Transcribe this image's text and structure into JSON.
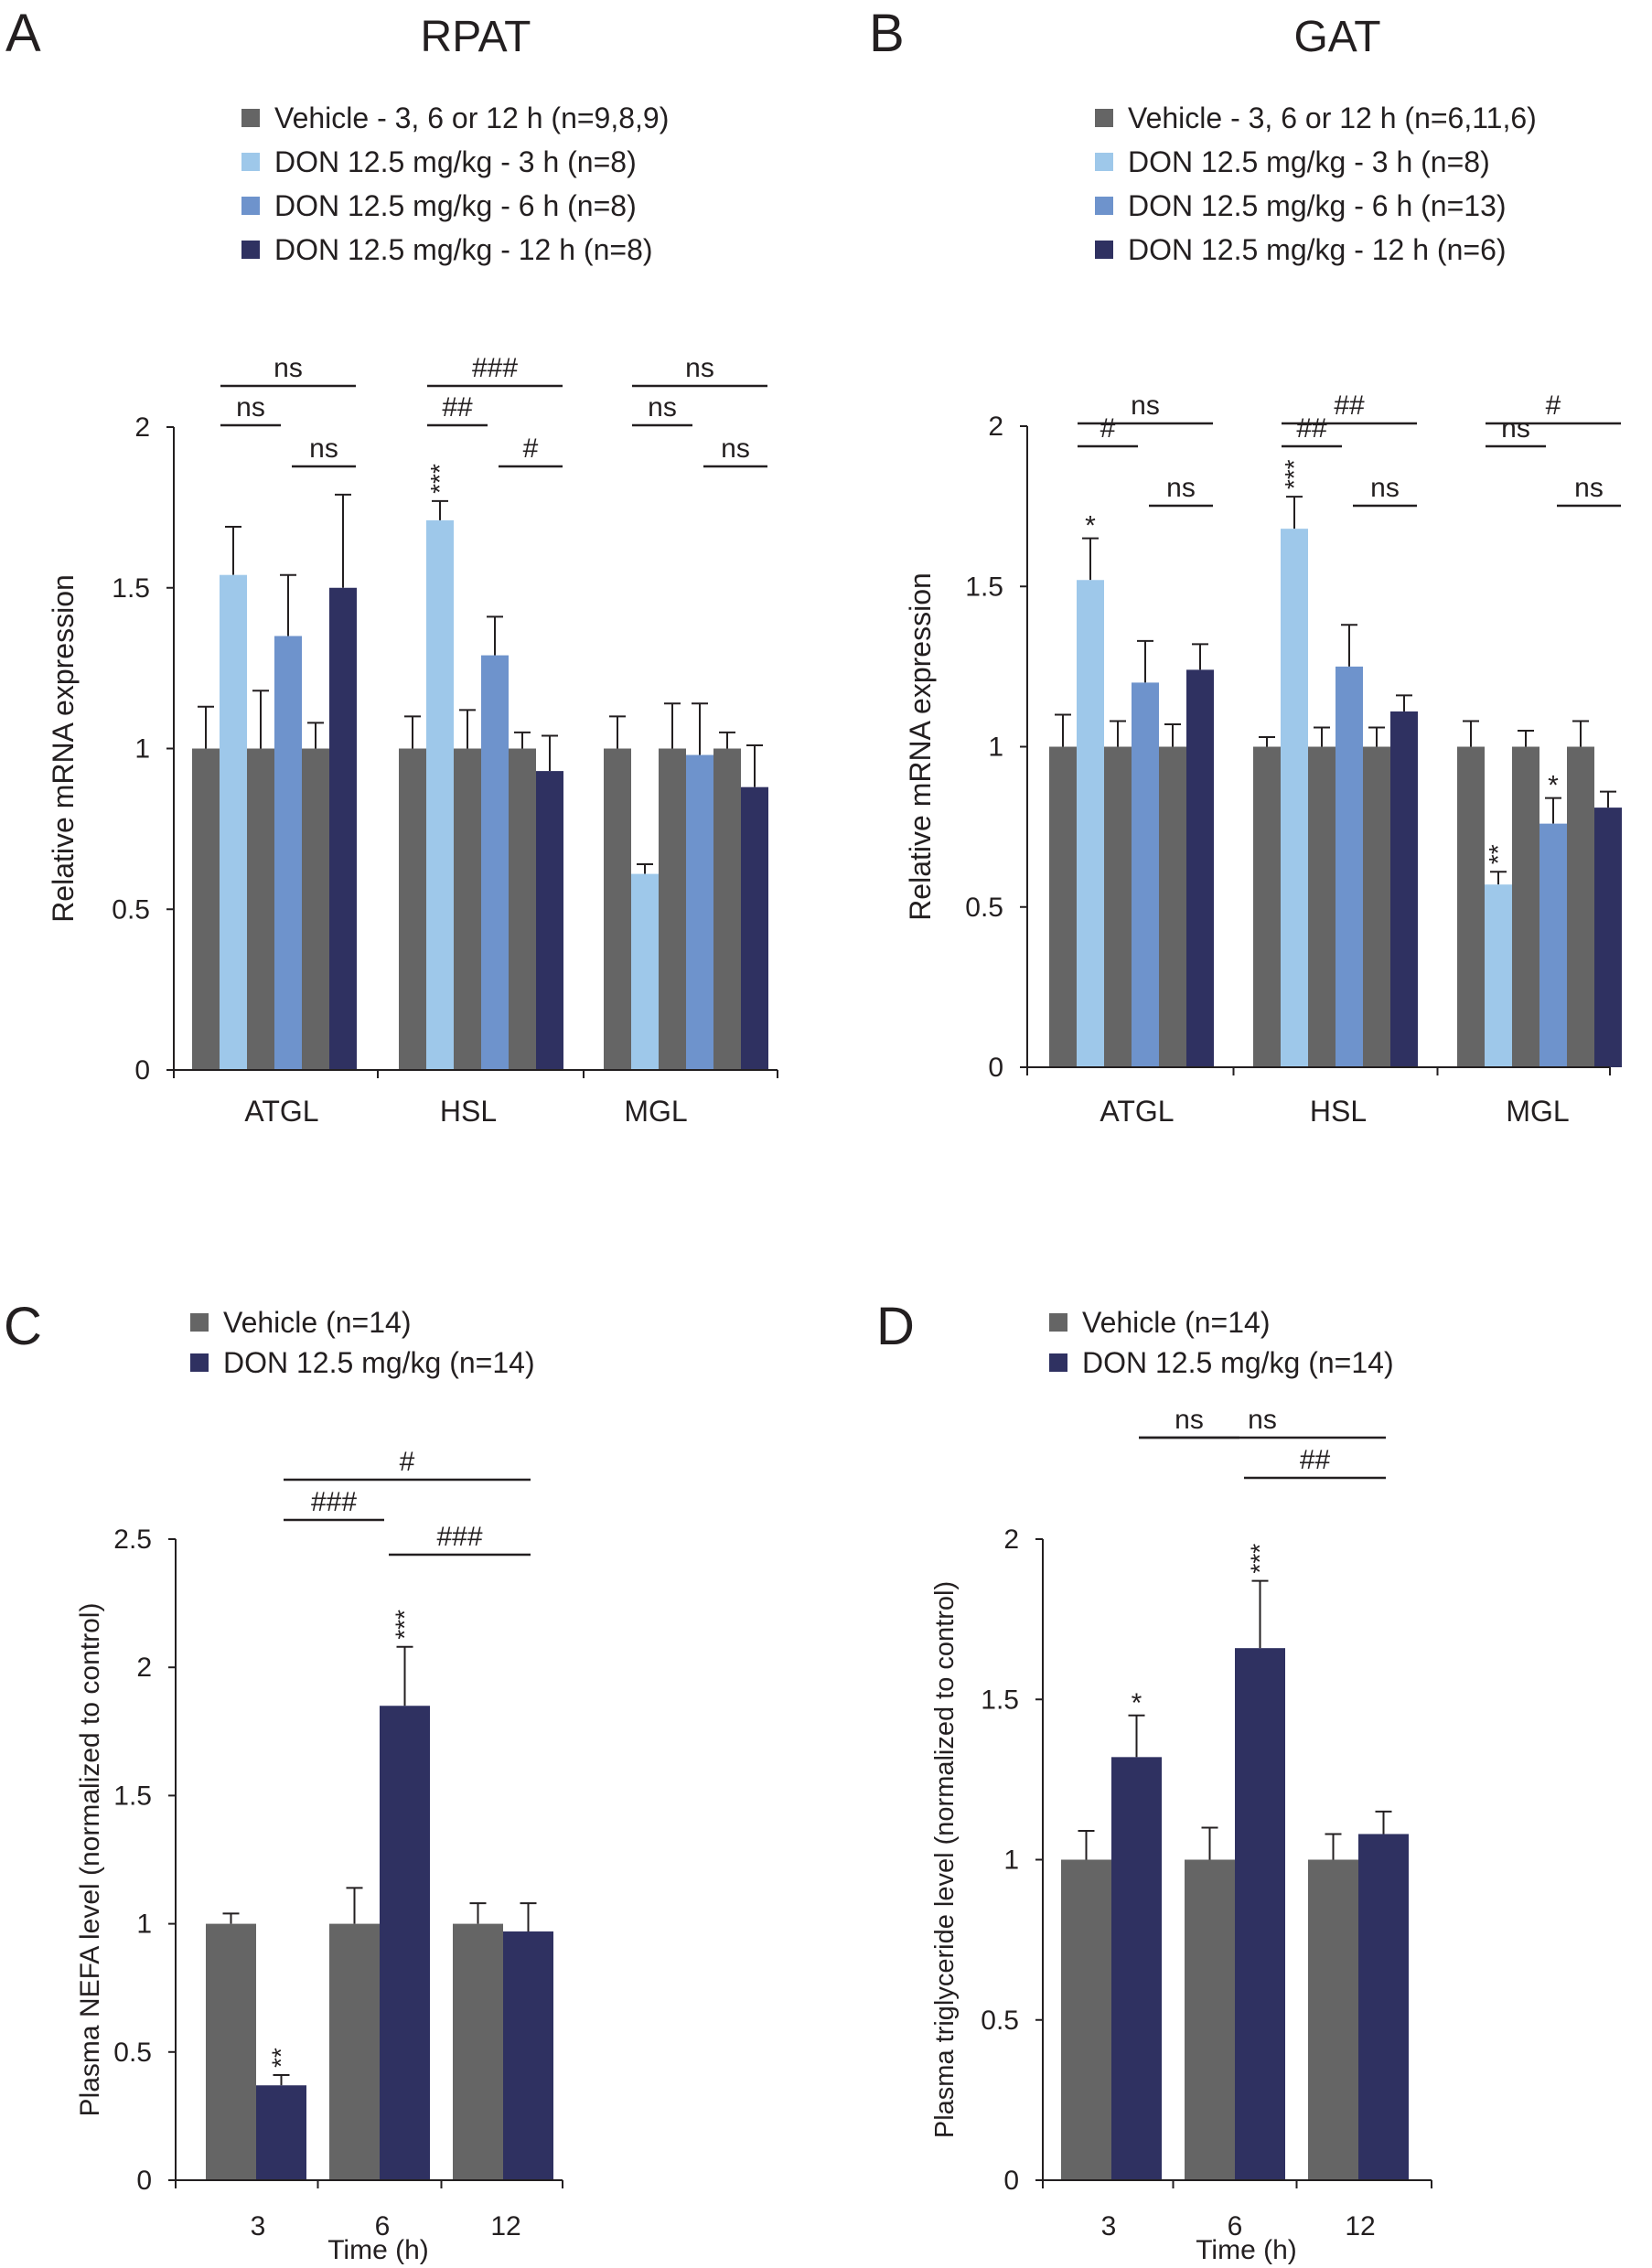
{
  "colors": {
    "vehicle": "#656565",
    "don_3h": "#9ec8ea",
    "don_6h": "#6e93cc",
    "don_12h": "#2f3161",
    "axis": "#231f20"
  },
  "chart_data": [
    {
      "type": "bar",
      "panel_letter": "A",
      "title": "RPAT",
      "ylabel": "Relative mRNA expression",
      "xlabel": "",
      "ylim": [
        0,
        2
      ],
      "yticks": [
        0,
        0.5,
        1,
        1.5,
        2
      ],
      "ytick_labels": [
        "0",
        "0.5",
        "1",
        "1.5",
        "2"
      ],
      "categories": [
        "ATGL",
        "HSL",
        "MGL"
      ],
      "legend": [
        {
          "label": "Vehicle - 3, 6 or 12 h (n=9,8,9)",
          "color": "vehicle"
        },
        {
          "label": "DON 12.5 mg/kg - 3 h (n=8)",
          "color": "don_3h"
        },
        {
          "label": "DON 12.5 mg/kg - 6 h (n=8)",
          "color": "don_6h"
        },
        {
          "label": "DON 12.5 mg/kg - 12 h (n=8)",
          "color": "don_12h"
        }
      ],
      "groups": [
        {
          "bars": [
            {
              "value": 1.0,
              "err": 0.13,
              "color": "vehicle"
            },
            {
              "value": 1.54,
              "err": 0.15,
              "color": "don_3h"
            },
            {
              "value": 1.0,
              "err": 0.18,
              "color": "vehicle"
            },
            {
              "value": 1.35,
              "err": 0.19,
              "color": "don_6h"
            },
            {
              "value": 1.0,
              "err": 0.08,
              "color": "vehicle"
            },
            {
              "value": 1.5,
              "err": 0.29,
              "color": "don_12h"
            }
          ]
        },
        {
          "bars": [
            {
              "value": 1.0,
              "err": 0.1,
              "color": "vehicle"
            },
            {
              "value": 1.71,
              "err": 0.06,
              "color": "don_3h",
              "star": "***"
            },
            {
              "value": 1.0,
              "err": 0.12,
              "color": "vehicle"
            },
            {
              "value": 1.29,
              "err": 0.12,
              "color": "don_6h"
            },
            {
              "value": 1.0,
              "err": 0.05,
              "color": "vehicle"
            },
            {
              "value": 0.93,
              "err": 0.11,
              "color": "don_12h"
            }
          ]
        },
        {
          "bars": [
            {
              "value": 1.0,
              "err": 0.1,
              "color": "vehicle"
            },
            {
              "value": 0.61,
              "err": 0.03,
              "color": "don_3h"
            },
            {
              "value": 1.0,
              "err": 0.14,
              "color": "vehicle"
            },
            {
              "value": 0.98,
              "err": 0.16,
              "color": "don_6h"
            },
            {
              "value": 1.0,
              "err": 0.05,
              "color": "vehicle"
            },
            {
              "value": 0.88,
              "err": 0.13,
              "color": "don_12h"
            }
          ]
        }
      ],
      "comparisons": [
        {
          "group": 0,
          "from": 1,
          "to": 5,
          "level": 3,
          "label": "ns"
        },
        {
          "group": 0,
          "from": 1,
          "to": 3,
          "level": 2,
          "label": "ns"
        },
        {
          "group": 0,
          "from": 3,
          "to": 5,
          "level": 1,
          "label": "ns"
        },
        {
          "group": 1,
          "from": 1,
          "to": 5,
          "level": 3,
          "label": "###"
        },
        {
          "group": 1,
          "from": 1,
          "to": 3,
          "level": 2,
          "label": "##"
        },
        {
          "group": 1,
          "from": 3,
          "to": 5,
          "level": 1,
          "label": "#"
        },
        {
          "group": 2,
          "from": 1,
          "to": 5,
          "level": 3,
          "label": "ns"
        },
        {
          "group": 2,
          "from": 1,
          "to": 3,
          "level": 2,
          "label": "ns"
        },
        {
          "group": 2,
          "from": 3,
          "to": 5,
          "level": 1,
          "label": "ns"
        }
      ]
    },
    {
      "type": "bar",
      "panel_letter": "B",
      "title": "GAT",
      "ylabel": "Relative mRNA expression",
      "xlabel": "",
      "ylim": [
        0,
        2
      ],
      "yticks": [
        0,
        0.5,
        1,
        1.5,
        2
      ],
      "ytick_labels": [
        "0",
        "0.5",
        "1",
        "1.5",
        "2"
      ],
      "categories": [
        "ATGL",
        "HSL",
        "MGL"
      ],
      "legend": [
        {
          "label": "Vehicle - 3, 6 or 12 h (n=6,11,6)",
          "color": "vehicle"
        },
        {
          "label": "DON 12.5 mg/kg - 3 h (n=8)",
          "color": "don_3h"
        },
        {
          "label": "DON 12.5 mg/kg - 6 h (n=13)",
          "color": "don_6h"
        },
        {
          "label": "DON 12.5 mg/kg - 12 h (n=6)",
          "color": "don_12h"
        }
      ],
      "groups": [
        {
          "bars": [
            {
              "value": 1.0,
              "err": 0.1,
              "color": "vehicle"
            },
            {
              "value": 1.52,
              "err": 0.13,
              "color": "don_3h",
              "star": "*"
            },
            {
              "value": 1.0,
              "err": 0.08,
              "color": "vehicle"
            },
            {
              "value": 1.2,
              "err": 0.13,
              "color": "don_6h"
            },
            {
              "value": 1.0,
              "err": 0.07,
              "color": "vehicle"
            },
            {
              "value": 1.24,
              "err": 0.08,
              "color": "don_12h"
            }
          ]
        },
        {
          "bars": [
            {
              "value": 1.0,
              "err": 0.03,
              "color": "vehicle"
            },
            {
              "value": 1.68,
              "err": 0.1,
              "color": "don_3h",
              "star": "***"
            },
            {
              "value": 1.0,
              "err": 0.06,
              "color": "vehicle"
            },
            {
              "value": 1.25,
              "err": 0.13,
              "color": "don_6h"
            },
            {
              "value": 1.0,
              "err": 0.06,
              "color": "vehicle"
            },
            {
              "value": 1.11,
              "err": 0.05,
              "color": "don_12h"
            }
          ]
        },
        {
          "bars": [
            {
              "value": 1.0,
              "err": 0.08,
              "color": "vehicle"
            },
            {
              "value": 0.57,
              "err": 0.04,
              "color": "don_3h",
              "star": "**"
            },
            {
              "value": 1.0,
              "err": 0.05,
              "color": "vehicle"
            },
            {
              "value": 0.76,
              "err": 0.08,
              "color": "don_6h",
              "star": "*"
            },
            {
              "value": 1.0,
              "err": 0.08,
              "color": "vehicle"
            },
            {
              "value": 0.81,
              "err": 0.05,
              "color": "don_12h"
            }
          ]
        }
      ],
      "comparisons": [
        {
          "group": 0,
          "from": 1,
          "to": 5,
          "level": 3,
          "label": "ns"
        },
        {
          "group": 0,
          "from": 1,
          "to": 3,
          "level": 2,
          "label": "#"
        },
        {
          "group": 0,
          "from": 3,
          "to": 5,
          "level": 1,
          "label": "ns"
        },
        {
          "group": 1,
          "from": 1,
          "to": 5,
          "level": 3,
          "label": "##"
        },
        {
          "group": 1,
          "from": 1,
          "to": 3,
          "level": 2,
          "label": "##"
        },
        {
          "group": 1,
          "from": 3,
          "to": 5,
          "level": 1,
          "label": "ns"
        },
        {
          "group": 2,
          "from": 1,
          "to": 5,
          "level": 3,
          "label": "#"
        },
        {
          "group": 2,
          "from": 1,
          "to": 3,
          "level": 2,
          "label": "ns"
        },
        {
          "group": 2,
          "from": 3,
          "to": 5,
          "level": 1,
          "label": "ns"
        }
      ]
    },
    {
      "type": "bar",
      "panel_letter": "C",
      "title": "",
      "ylabel": "Plasma NEFA level (normalized to control)",
      "xlabel": "Time (h)",
      "ylim": [
        0,
        2.5
      ],
      "yticks": [
        0,
        0.5,
        1,
        1.5,
        2,
        2.5
      ],
      "ytick_labels": [
        "0",
        "0.5",
        "1",
        "1.5",
        "2",
        "2.5"
      ],
      "categories": [
        "3",
        "6",
        "12"
      ],
      "legend": [
        {
          "label": "Vehicle (n=14)",
          "color": "vehicle"
        },
        {
          "label": "DON 12.5 mg/kg (n=14)",
          "color": "don_12h"
        }
      ],
      "groups": [
        {
          "bars": [
            {
              "value": 1.0,
              "err": 0.04,
              "color": "vehicle"
            },
            {
              "value": 0.37,
              "err": 0.04,
              "color": "don_12h",
              "star": "**"
            }
          ]
        },
        {
          "bars": [
            {
              "value": 1.0,
              "err": 0.14,
              "color": "vehicle"
            },
            {
              "value": 1.85,
              "err": 0.23,
              "color": "don_12h",
              "star": "***"
            }
          ]
        },
        {
          "bars": [
            {
              "value": 1.0,
              "err": 0.08,
              "color": "vehicle"
            },
            {
              "value": 0.97,
              "err": 0.11,
              "color": "don_12h"
            }
          ]
        }
      ],
      "comparisons": [
        {
          "fromGroup": 0,
          "toGroup": 2,
          "level": 3,
          "label": "#"
        },
        {
          "fromGroup": 0,
          "toGroup": 1,
          "level": 2,
          "label": "###"
        },
        {
          "fromGroup": 1,
          "toGroup": 2,
          "level": 1,
          "label": "###"
        }
      ]
    },
    {
      "type": "bar",
      "panel_letter": "D",
      "title": "",
      "ylabel": "Plasma triglyceride level (normalized to control)",
      "xlabel": "Time (h)",
      "ylim": [
        0,
        2
      ],
      "yticks": [
        0,
        0.5,
        1,
        1.5,
        2
      ],
      "ytick_labels": [
        "0",
        "0.5",
        "1",
        "1.5",
        "2"
      ],
      "categories": [
        "3",
        "6",
        "12"
      ],
      "legend": [
        {
          "label": "Vehicle (n=14)",
          "color": "vehicle"
        },
        {
          "label": "DON 12.5 mg/kg (n=14)",
          "color": "don_12h"
        }
      ],
      "groups": [
        {
          "bars": [
            {
              "value": 1.0,
              "err": 0.09,
              "color": "vehicle"
            },
            {
              "value": 1.32,
              "err": 0.13,
              "color": "don_12h",
              "star": "*"
            }
          ]
        },
        {
          "bars": [
            {
              "value": 1.0,
              "err": 0.1,
              "color": "vehicle"
            },
            {
              "value": 1.66,
              "err": 0.21,
              "color": "don_12h",
              "star": "***"
            }
          ]
        },
        {
          "bars": [
            {
              "value": 1.0,
              "err": 0.08,
              "color": "vehicle"
            },
            {
              "value": 1.08,
              "err": 0.07,
              "color": "don_12h"
            }
          ]
        }
      ],
      "comparisons": [
        {
          "fromGroup": 0,
          "toGroup": 2,
          "level": 3,
          "label": "ns"
        },
        {
          "fromGroup": 0,
          "toGroup": 1,
          "level": 2,
          "label": "ns"
        },
        {
          "fromGroup": 1,
          "toGroup": 2,
          "level": 1,
          "label": "##"
        }
      ]
    }
  ]
}
